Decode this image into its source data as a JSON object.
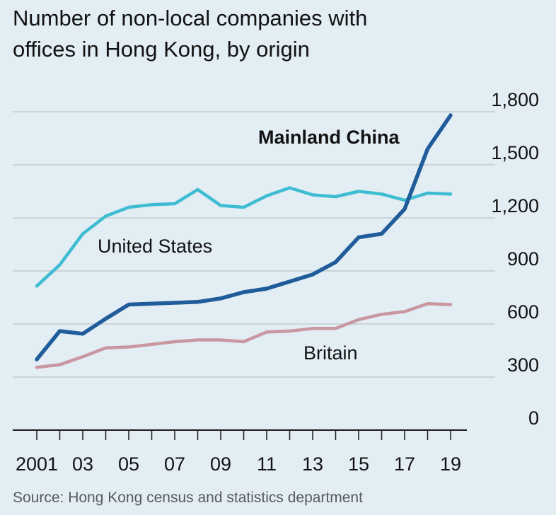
{
  "title_lines": [
    "Number of non-local companies with",
    "offices in Hong Kong, by origin"
  ],
  "source": "Source: Hong Kong census and statistics department",
  "colors": {
    "background": "#e2edf4",
    "grid": "#c2ccd2",
    "axis": "#1a1a1a"
  },
  "chart_data": {
    "type": "line",
    "title": "Number of non-local companies with offices in Hong Kong, by origin",
    "x": [
      2001,
      2002,
      2003,
      2004,
      2005,
      2006,
      2007,
      2008,
      2009,
      2010,
      2011,
      2012,
      2013,
      2014,
      2015,
      2016,
      2017,
      2018,
      2019
    ],
    "x_tick_values": [
      2001,
      2003,
      2005,
      2007,
      2009,
      2011,
      2013,
      2015,
      2017,
      2019
    ],
    "x_tick_labels": [
      "2001",
      "03",
      "05",
      "07",
      "09",
      "11",
      "13",
      "15",
      "17",
      "19"
    ],
    "y_ticks": [
      0,
      300,
      600,
      900,
      1200,
      1500,
      1800
    ],
    "y_tick_labels": [
      "0",
      "300",
      "600",
      "900",
      "1,200",
      "1,500",
      "1,800"
    ],
    "ylim": [
      0,
      1800
    ],
    "grid": true,
    "y_axis_side": "right",
    "series": [
      {
        "name": "United States",
        "color": "#3ebcd2",
        "label_weight": "normal",
        "values": [
          815,
          935,
          1110,
          1210,
          1260,
          1275,
          1280,
          1360,
          1270,
          1260,
          1325,
          1370,
          1330,
          1320,
          1350,
          1335,
          1300,
          1340,
          1335
        ]
      },
      {
        "name": "Mainland China",
        "color": "#1f5c99",
        "label_weight": "bold",
        "values": [
          400,
          560,
          545,
          630,
          710,
          715,
          720,
          725,
          745,
          780,
          800,
          840,
          880,
          950,
          1090,
          1110,
          1250,
          1590,
          1780
        ]
      },
      {
        "name": "Britain",
        "color": "#c9979f",
        "label_weight": "normal",
        "values": [
          355,
          370,
          415,
          465,
          470,
          485,
          500,
          510,
          510,
          500,
          555,
          560,
          575,
          575,
          625,
          655,
          670,
          715,
          710
        ]
      }
    ]
  }
}
